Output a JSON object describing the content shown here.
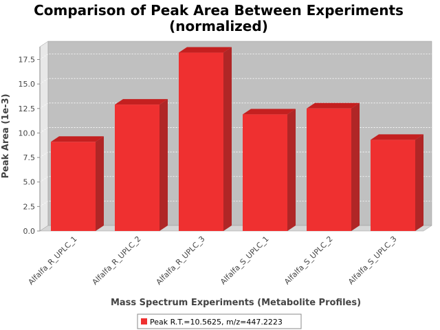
{
  "chart_data": {
    "type": "bar",
    "title_line1": "Comparison of Peak Area Between Experiments",
    "title_line2": "(normalized)",
    "xlabel": "Mass Spectrum Experiments (Metabolite Profiles)",
    "ylabel": "Peak Area (1e-3)",
    "categories": [
      "Alfalfa_R_UPLC_1",
      "Alfalfa_R_UPLC_2",
      "Alfalfa_R_UPLC_3",
      "Alfalfa_S_UPLC_1",
      "Alfalfa_S_UPLC_2",
      "Alfalfa_S_UPLC_3"
    ],
    "series": [
      {
        "name": "Peak R.T.=10.5625, m/z=447.2223",
        "values": [
          9.1,
          12.9,
          18.2,
          11.9,
          12.5,
          9.3
        ]
      }
    ],
    "yticks": [
      "0.0",
      "2.5",
      "5.0",
      "7.5",
      "10.0",
      "12.5",
      "15.0",
      "17.5"
    ],
    "ylim": [
      0,
      18.8
    ],
    "grid": true,
    "legend_position": "bottom",
    "colors": {
      "bar_front": "#ef3030",
      "bar_top": "#c42020",
      "bar_side": "#b02626",
      "plot_back": "#c0c0c0",
      "plot_floor": "#d6d6d6",
      "plot_side": "#e8e8e8",
      "grid": "#ffffff"
    }
  }
}
